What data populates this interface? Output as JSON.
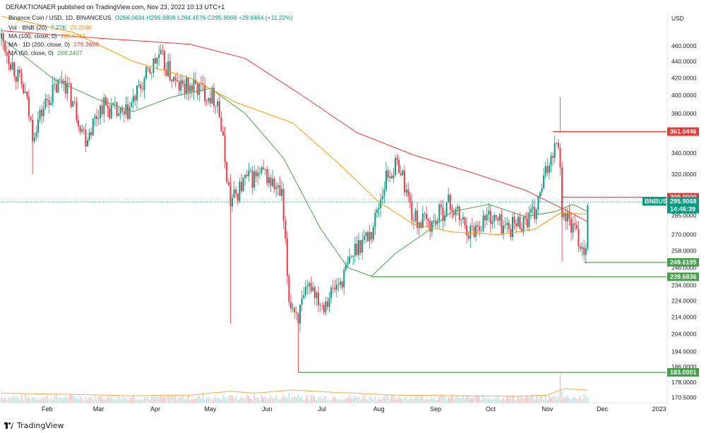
{
  "header": {
    "publisher": "DERAKTIONAER published on TradingView.com, Nov 23, 2022 10:13 UTC+1",
    "symbol": "Binance Coin / USD, 1D, BINANCEUS",
    "ohlc": "O266.0634  H296.8808  L264.4576  C295.9068  +29.8464 (+11.22%)"
  },
  "indicators": [
    {
      "label": "Vol · BNB (20)",
      "v1": "7.27K",
      "v2": "23.056K",
      "color": "#f7931a"
    },
    {
      "label": "MA (100, close, 0)",
      "v1": "285.6711",
      "v2": "",
      "color": "#ff9800"
    },
    {
      "label": "MA · 1D (200, close, 0)",
      "v1": "279.2686",
      "v2": "",
      "color": "#e53935"
    },
    {
      "label": "MA (50, close, 0)",
      "v1": "288.2407",
      "v2": "",
      "color": "#43a047"
    }
  ],
  "currency": "USD",
  "footer": "TradingView",
  "chart_data": {
    "type": "candlestick",
    "y_scale": "log",
    "ylim": [
      168,
      505
    ],
    "y_ticks": [
      "460.0000",
      "440.0000",
      "420.0000",
      "400.0000",
      "380.0000",
      "340.0000",
      "320.0000",
      "300.0000",
      "285.0000",
      "270.0000",
      "258.0000",
      "246.0000",
      "234.0000",
      "224.0000",
      "214.0000",
      "204.0000",
      "194.0000",
      "186.0000",
      "178.0000",
      "170.5000"
    ],
    "x_ticks": [
      [
        "Feb",
        "2022-02-01"
      ],
      [
        "Mar",
        "2022-03-01"
      ],
      [
        "Apr",
        "2022-04-01"
      ],
      [
        "May",
        "2022-05-01"
      ],
      [
        "Jun",
        "2022-06-01"
      ],
      [
        "Jul",
        "2022-07-01"
      ],
      [
        "Aug",
        "2022-08-01"
      ],
      [
        "Sep",
        "2022-09-01"
      ],
      [
        "Oct",
        "2022-10-01"
      ],
      [
        "Nov",
        "2022-11-01"
      ],
      [
        "Dec",
        "2022-12-01"
      ],
      [
        "2023",
        "2023-01-01"
      ]
    ],
    "x_range": [
      "2022-01-07",
      "2023-01-05"
    ],
    "candles_key": [
      [
        "2022-01-07",
        470
      ],
      [
        "2022-01-20",
        400
      ],
      [
        "2022-01-24",
        360
      ],
      [
        "2022-02-01",
        395
      ],
      [
        "2022-02-10",
        420
      ],
      [
        "2022-02-22",
        355
      ],
      [
        "2022-03-03",
        390
      ],
      [
        "2022-03-15",
        375
      ],
      [
        "2022-03-28",
        425
      ],
      [
        "2022-04-03",
        448
      ],
      [
        "2022-04-13",
        410
      ],
      [
        "2022-04-25",
        408
      ],
      [
        "2022-05-05",
        395
      ],
      [
        "2022-05-10",
        320
      ],
      [
        "2022-05-12",
        295
      ],
      [
        "2022-05-20",
        315
      ],
      [
        "2022-05-31",
        320
      ],
      [
        "2022-06-09",
        300
      ],
      [
        "2022-06-13",
        225
      ],
      [
        "2022-06-18",
        215
      ],
      [
        "2022-06-25",
        235
      ],
      [
        "2022-07-01",
        222
      ],
      [
        "2022-07-12",
        238
      ],
      [
        "2022-07-20",
        262
      ],
      [
        "2022-07-28",
        272
      ],
      [
        "2022-08-05",
        318
      ],
      [
        "2022-08-12",
        330
      ],
      [
        "2022-08-20",
        282
      ],
      [
        "2022-08-30",
        278
      ],
      [
        "2022-09-08",
        295
      ],
      [
        "2022-09-20",
        272
      ],
      [
        "2022-09-30",
        285
      ],
      [
        "2022-10-10",
        275
      ],
      [
        "2022-10-25",
        285
      ],
      [
        "2022-11-04",
        345
      ],
      [
        "2022-11-07",
        355
      ],
      [
        "2022-11-09",
        290
      ],
      [
        "2022-11-12",
        282
      ],
      [
        "2022-11-16",
        272
      ],
      [
        "2022-11-21",
        258
      ],
      [
        "2022-11-22",
        266
      ],
      [
        "2022-11-23",
        295.9
      ]
    ],
    "moving_averages": [
      {
        "name": "MA (50, close, 0)",
        "color": "#43a047",
        "points": [
          [
            "2022-01-07",
            470
          ],
          [
            "2022-02-05",
            418
          ],
          [
            "2022-03-01",
            395
          ],
          [
            "2022-03-20",
            382
          ],
          [
            "2022-04-10",
            398
          ],
          [
            "2022-05-01",
            408
          ],
          [
            "2022-05-20",
            380
          ],
          [
            "2022-06-10",
            335
          ],
          [
            "2022-06-30",
            275
          ],
          [
            "2022-07-15",
            246
          ],
          [
            "2022-07-28",
            240
          ],
          [
            "2022-08-10",
            256
          ],
          [
            "2022-08-25",
            270
          ],
          [
            "2022-09-10",
            288
          ],
          [
            "2022-09-30",
            294
          ],
          [
            "2022-10-20",
            284
          ],
          [
            "2022-11-05",
            288
          ],
          [
            "2022-11-15",
            294
          ],
          [
            "2022-11-23",
            288
          ]
        ]
      },
      {
        "name": "MA (100, close, 0)",
        "color": "#ff9800",
        "points": [
          [
            "2022-01-07",
            500
          ],
          [
            "2022-02-15",
            478
          ],
          [
            "2022-03-20",
            440
          ],
          [
            "2022-04-20",
            420
          ],
          [
            "2022-05-15",
            392
          ],
          [
            "2022-06-15",
            370
          ],
          [
            "2022-07-10",
            330
          ],
          [
            "2022-08-01",
            296
          ],
          [
            "2022-08-20",
            278
          ],
          [
            "2022-09-10",
            272
          ],
          [
            "2022-10-05",
            270
          ],
          [
            "2022-10-25",
            274
          ],
          [
            "2022-11-08",
            287
          ],
          [
            "2022-11-23",
            286
          ]
        ]
      },
      {
        "name": "MA · 1D (200, close, 0)",
        "color": "#e53935",
        "points": [
          [
            "2022-01-07",
            480
          ],
          [
            "2022-03-01",
            470
          ],
          [
            "2022-04-20",
            462
          ],
          [
            "2022-05-20",
            444
          ],
          [
            "2022-06-20",
            400
          ],
          [
            "2022-07-20",
            360
          ],
          [
            "2022-08-20",
            338
          ],
          [
            "2022-09-20",
            322
          ],
          [
            "2022-10-20",
            306
          ],
          [
            "2022-11-10",
            290
          ],
          [
            "2022-11-23",
            280
          ]
        ]
      }
    ],
    "levels": [
      {
        "label": "361.0446",
        "value": 361.0446,
        "color": "#e53935",
        "start": "2022-11-04"
      },
      {
        "label": "300.0000",
        "value": 300,
        "color": "#e53935",
        "start": "2022-11-09"
      },
      {
        "label": "249.6195",
        "value": 249.6195,
        "color": "#43a047",
        "start": "2022-11-21"
      },
      {
        "label": "239.6836",
        "value": 239.6836,
        "color": "#43a047",
        "start": "2022-07-28"
      },
      {
        "label": "183.0001",
        "value": 183.0001,
        "color": "#43a047",
        "start": "2022-06-18"
      }
    ],
    "last_price": {
      "symbol": "BNBUSD",
      "price": "295.9068",
      "countdown": "14:46:39",
      "value": 295.9068
    },
    "volume_ma_points": [
      [
        "2022-01-07",
        0.3
      ],
      [
        "2022-02-15",
        0.26
      ],
      [
        "2022-03-20",
        0.22
      ],
      [
        "2022-04-20",
        0.24
      ],
      [
        "2022-05-12",
        0.36
      ],
      [
        "2022-05-25",
        0.3
      ],
      [
        "2022-06-15",
        0.4
      ],
      [
        "2022-07-10",
        0.32
      ],
      [
        "2022-08-10",
        0.24
      ],
      [
        "2022-09-15",
        0.22
      ],
      [
        "2022-10-15",
        0.2
      ],
      [
        "2022-11-01",
        0.24
      ],
      [
        "2022-11-10",
        0.44
      ],
      [
        "2022-11-23",
        0.4
      ]
    ],
    "volume_spikes": [
      [
        "2022-01-20",
        0.9
      ],
      [
        "2022-05-12",
        0.8
      ],
      [
        "2022-06-13",
        1.0
      ],
      [
        "2022-06-18",
        0.9
      ],
      [
        "2022-11-08",
        3.0
      ],
      [
        "2022-11-09",
        1.2
      ]
    ]
  }
}
